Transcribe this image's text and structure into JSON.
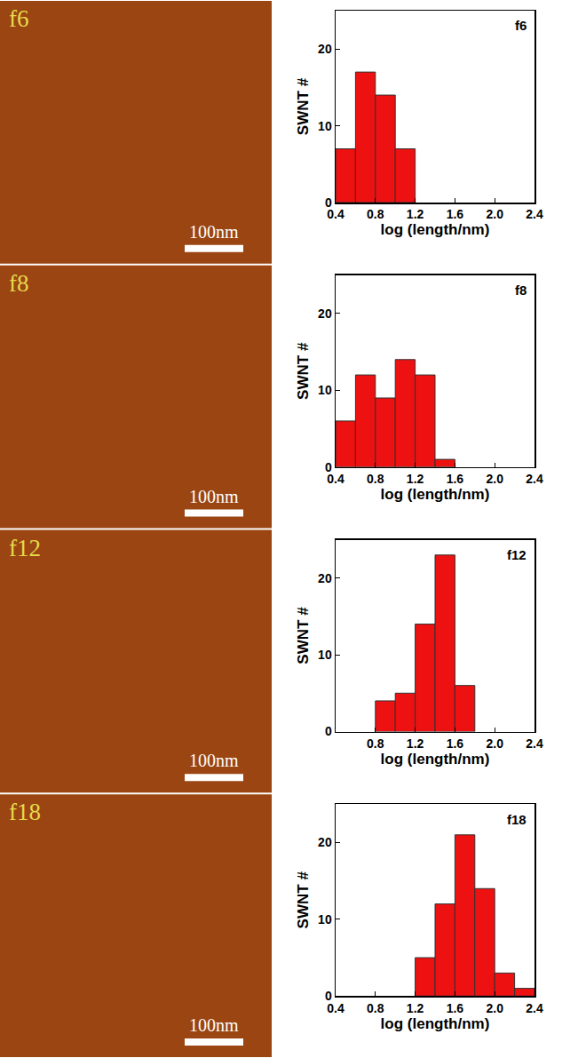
{
  "chart_data": [
    {
      "type": "histogram",
      "title": "f6",
      "x_label": "log (length/nm)",
      "y_label": "SWNT #",
      "bins": [
        0.4,
        0.6,
        0.8,
        1.0,
        1.2
      ],
      "values": [
        7,
        17,
        14,
        7
      ],
      "color": "#ee1111",
      "xlim": [
        0.4,
        2.4
      ],
      "xticks": [
        0.4,
        0.8,
        1.2,
        1.6,
        {
          "value": 2,
          "label": "2.0"
        },
        2.4
      ],
      "ylim": [
        0,
        25
      ],
      "yticks": [
        0,
        10,
        20
      ],
      "grid": false
    },
    {
      "type": "histogram",
      "title": "f8",
      "x_label": "log (length/nm)",
      "y_label": "SWNT #",
      "bins": [
        0.4,
        0.6,
        0.8,
        1.0,
        1.2,
        1.4,
        1.6
      ],
      "values": [
        6,
        12,
        9,
        14,
        12,
        1
      ],
      "color": "#ee1111",
      "xlim": [
        0.4,
        2.4
      ],
      "xticks": [
        0.4,
        0.8,
        1.2,
        1.6,
        {
          "value": 2,
          "label": "2.0"
        },
        2.4
      ],
      "ylim": [
        0,
        25
      ],
      "yticks": [
        0,
        10,
        20
      ],
      "grid": false
    },
    {
      "type": "histogram",
      "title": "f12",
      "x_label": "log (length/nm)",
      "y_label": "SWNT #",
      "bins": [
        0.8,
        1.0,
        1.2,
        1.4,
        1.6,
        1.8
      ],
      "values": [
        4,
        5,
        14,
        23,
        6
      ],
      "color": "#ee1111",
      "xlim": [
        0.4,
        2.4
      ],
      "xticks": [
        0.8,
        1.2,
        1.6,
        {
          "value": 2,
          "label": "2.0"
        },
        2.4
      ],
      "ylim": [
        0,
        25
      ],
      "yticks": [
        0,
        10,
        20
      ],
      "grid": false
    },
    {
      "type": "histogram",
      "title": "f18",
      "x_label": "log (length/nm)",
      "y_label": "SWNT #",
      "bins": [
        1.2,
        1.4,
        1.6,
        1.8,
        2.0,
        2.2,
        2.4
      ],
      "values": [
        5,
        12,
        21,
        14,
        3,
        1
      ],
      "color": "#ee1111",
      "xlim": [
        0.4,
        2.4
      ],
      "xticks": [
        0.4,
        0.8,
        1.2,
        1.6,
        {
          "value": 2,
          "label": "2.0"
        },
        2.4
      ],
      "ylim": [
        0,
        25
      ],
      "yticks": [
        0,
        10,
        20
      ],
      "grid": false
    }
  ],
  "images": [
    {
      "label": "f6",
      "scale_bar": "100nm"
    },
    {
      "label": "f8",
      "scale_bar": "100nm"
    },
    {
      "label": "f12",
      "scale_bar": "100nm"
    },
    {
      "label": "f18",
      "scale_bar": "100nm"
    }
  ]
}
